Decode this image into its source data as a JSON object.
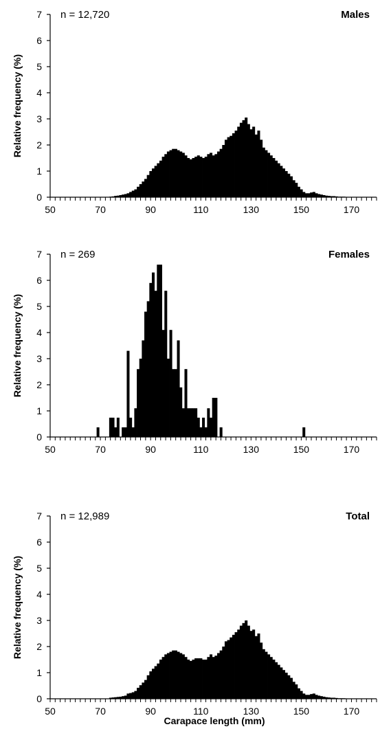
{
  "figure": {
    "xlabel": "Carapace length (mm)",
    "colors": {
      "bars": "#000000",
      "axes": "#000000",
      "background": "#ffffff"
    }
  },
  "chart_data": [
    {
      "type": "bar",
      "title": "Males",
      "annotation": "n = 12,720",
      "ylabel": "Relative frequency (%)",
      "xlabel": "",
      "ylim": [
        0,
        7
      ],
      "yticks": [
        0,
        1,
        2,
        3,
        4,
        5,
        6,
        7
      ],
      "xlim": [
        50,
        180
      ],
      "xticks": [
        50,
        70,
        90,
        110,
        130,
        150,
        170
      ],
      "bin_width": 1,
      "grid": false,
      "x": [
        74,
        75,
        76,
        77,
        78,
        79,
        80,
        81,
        82,
        83,
        84,
        85,
        86,
        87,
        88,
        89,
        90,
        91,
        92,
        93,
        94,
        95,
        96,
        97,
        98,
        99,
        100,
        101,
        102,
        103,
        104,
        105,
        106,
        107,
        108,
        109,
        110,
        111,
        112,
        113,
        114,
        115,
        116,
        117,
        118,
        119,
        120,
        121,
        122,
        123,
        124,
        125,
        126,
        127,
        128,
        129,
        130,
        131,
        132,
        133,
        134,
        135,
        136,
        137,
        138,
        139,
        140,
        141,
        142,
        143,
        144,
        145,
        146,
        147,
        148,
        149,
        150,
        151,
        152,
        153,
        154,
        155,
        156,
        157,
        158,
        159,
        160,
        161,
        162,
        163,
        164,
        165,
        166,
        167,
        168,
        169,
        170
      ],
      "values": [
        0.02,
        0.03,
        0.05,
        0.06,
        0.08,
        0.1,
        0.12,
        0.15,
        0.2,
        0.25,
        0.3,
        0.4,
        0.5,
        0.6,
        0.7,
        0.85,
        1.0,
        1.1,
        1.2,
        1.3,
        1.4,
        1.55,
        1.65,
        1.75,
        1.8,
        1.85,
        1.85,
        1.8,
        1.75,
        1.7,
        1.6,
        1.5,
        1.45,
        1.5,
        1.55,
        1.6,
        1.55,
        1.5,
        1.55,
        1.65,
        1.7,
        1.6,
        1.65,
        1.75,
        1.85,
        2.0,
        2.2,
        2.3,
        2.35,
        2.45,
        2.55,
        2.7,
        2.85,
        2.95,
        3.05,
        2.8,
        2.6,
        2.7,
        2.4,
        2.55,
        2.2,
        1.9,
        1.8,
        1.7,
        1.6,
        1.5,
        1.4,
        1.3,
        1.2,
        1.1,
        1.0,
        0.9,
        0.8,
        0.65,
        0.55,
        0.4,
        0.3,
        0.2,
        0.15,
        0.15,
        0.18,
        0.2,
        0.15,
        0.12,
        0.1,
        0.08,
        0.06,
        0.05,
        0.04,
        0.04,
        0.03,
        0.02,
        0.02,
        0.02,
        0.01,
        0.01,
        0.01
      ]
    },
    {
      "type": "bar",
      "title": "Females",
      "annotation": "n = 269",
      "ylabel": "Relative frequency (%)",
      "xlabel": "",
      "ylim": [
        0,
        7
      ],
      "yticks": [
        0,
        1,
        2,
        3,
        4,
        5,
        6,
        7
      ],
      "xlim": [
        50,
        180
      ],
      "xticks": [
        50,
        70,
        90,
        110,
        130,
        150,
        170
      ],
      "bin_width": 1,
      "grid": false,
      "x": [
        69,
        74,
        75,
        76,
        77,
        79,
        80,
        81,
        82,
        83,
        84,
        85,
        86,
        87,
        88,
        89,
        90,
        91,
        92,
        93,
        94,
        95,
        96,
        97,
        98,
        99,
        100,
        101,
        102,
        103,
        104,
        105,
        106,
        107,
        108,
        109,
        110,
        111,
        112,
        113,
        114,
        115,
        116,
        118,
        151
      ],
      "values": [
        0.37,
        0.74,
        0.74,
        0.37,
        0.74,
        0.37,
        0.37,
        3.3,
        0.74,
        0.37,
        1.1,
        2.6,
        3.0,
        3.7,
        4.8,
        5.2,
        5.9,
        6.3,
        5.6,
        6.6,
        6.6,
        4.1,
        5.6,
        3.0,
        4.1,
        2.6,
        2.6,
        3.7,
        1.9,
        1.1,
        2.6,
        1.1,
        1.1,
        1.1,
        1.1,
        0.74,
        0.37,
        0.74,
        0.37,
        1.1,
        0.74,
        1.5,
        1.5,
        0.37,
        0.37
      ]
    },
    {
      "type": "bar",
      "title": "Total",
      "annotation": "n = 12,989",
      "ylabel": "Relative frequency (%)",
      "xlabel": "Carapace length (mm)",
      "ylim": [
        0,
        7
      ],
      "yticks": [
        0,
        1,
        2,
        3,
        4,
        5,
        6,
        7
      ],
      "xlim": [
        50,
        180
      ],
      "xticks": [
        50,
        70,
        90,
        110,
        130,
        150,
        170
      ],
      "bin_width": 1,
      "grid": false,
      "x": [
        74,
        75,
        76,
        77,
        78,
        79,
        80,
        81,
        82,
        83,
        84,
        85,
        86,
        87,
        88,
        89,
        90,
        91,
        92,
        93,
        94,
        95,
        96,
        97,
        98,
        99,
        100,
        101,
        102,
        103,
        104,
        105,
        106,
        107,
        108,
        109,
        110,
        111,
        112,
        113,
        114,
        115,
        116,
        117,
        118,
        119,
        120,
        121,
        122,
        123,
        124,
        125,
        126,
        127,
        128,
        129,
        130,
        131,
        132,
        133,
        134,
        135,
        136,
        137,
        138,
        139,
        140,
        141,
        142,
        143,
        144,
        145,
        146,
        147,
        148,
        149,
        150,
        151,
        152,
        153,
        154,
        155,
        156,
        157,
        158,
        159,
        160,
        161,
        162,
        163,
        164,
        165,
        166,
        167,
        168,
        169,
        170
      ],
      "values": [
        0.04,
        0.05,
        0.06,
        0.07,
        0.08,
        0.1,
        0.12,
        0.2,
        0.22,
        0.25,
        0.3,
        0.42,
        0.52,
        0.62,
        0.72,
        0.9,
        1.05,
        1.15,
        1.25,
        1.35,
        1.5,
        1.6,
        1.7,
        1.75,
        1.8,
        1.85,
        1.85,
        1.8,
        1.75,
        1.7,
        1.6,
        1.5,
        1.45,
        1.5,
        1.55,
        1.55,
        1.55,
        1.5,
        1.5,
        1.6,
        1.7,
        1.6,
        1.65,
        1.75,
        1.85,
        2.0,
        2.2,
        2.25,
        2.35,
        2.45,
        2.55,
        2.65,
        2.8,
        2.9,
        3.0,
        2.8,
        2.6,
        2.65,
        2.4,
        2.5,
        2.15,
        1.9,
        1.8,
        1.7,
        1.6,
        1.5,
        1.4,
        1.3,
        1.2,
        1.1,
        1.0,
        0.9,
        0.8,
        0.65,
        0.55,
        0.4,
        0.3,
        0.2,
        0.15,
        0.15,
        0.18,
        0.2,
        0.15,
        0.12,
        0.1,
        0.08,
        0.06,
        0.05,
        0.04,
        0.04,
        0.03,
        0.02,
        0.02,
        0.02,
        0.01,
        0.01,
        0.01
      ]
    }
  ]
}
